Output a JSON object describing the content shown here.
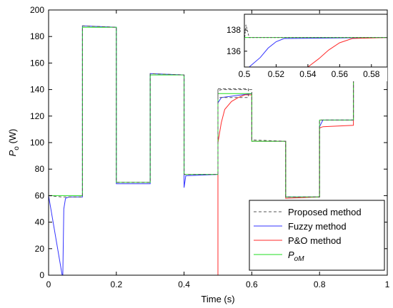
{
  "chart_data": {
    "type": "line",
    "xlabel": "Time (s)",
    "ylabel": "P_o (W)",
    "ylabel_main": "P",
    "ylabel_sub": "o",
    "ylabel_unit": " (W)",
    "xlim": [
      0,
      1
    ],
    "ylim": [
      0,
      200
    ],
    "x_ticks": [
      "0",
      "0.2",
      "0.4",
      "0.6",
      "0.8",
      "1"
    ],
    "y_ticks": [
      "0",
      "20",
      "40",
      "60",
      "80",
      "100",
      "120",
      "140",
      "160",
      "180",
      "200"
    ],
    "grid": false,
    "legend_position": "bottom-right",
    "series": [
      {
        "name": "Proposed method",
        "color": "#555555",
        "style": "dashed",
        "points": [
          [
            0,
            60
          ],
          [
            0.04,
            59
          ],
          [
            0.1,
            59
          ],
          [
            0.1,
            188
          ],
          [
            0.2,
            187
          ],
          [
            0.2,
            70
          ],
          [
            0.3,
            70
          ],
          [
            0.3,
            152
          ],
          [
            0.4,
            151
          ],
          [
            0.4,
            76
          ],
          [
            0.5,
            76
          ],
          [
            0.5,
            139
          ],
          [
            0.51,
            140
          ],
          [
            0.6,
            140
          ],
          [
            0.6,
            102
          ],
          [
            0.7,
            101
          ],
          [
            0.7,
            59
          ],
          [
            0.8,
            59
          ],
          [
            0.8,
            117
          ],
          [
            0.9,
            117
          ],
          [
            0.9,
            187
          ],
          [
            1.0,
            186
          ]
        ]
      },
      {
        "name": "Fuzzy method",
        "color": "#3333ff",
        "style": "solid",
        "points": [
          [
            0,
            60
          ],
          [
            0.04,
            0
          ],
          [
            0.042,
            0
          ],
          [
            0.045,
            50
          ],
          [
            0.05,
            58
          ],
          [
            0.06,
            59
          ],
          [
            0.1,
            59
          ],
          [
            0.1,
            188
          ],
          [
            0.2,
            187
          ],
          [
            0.2,
            69
          ],
          [
            0.3,
            69
          ],
          [
            0.3,
            152
          ],
          [
            0.4,
            151
          ],
          [
            0.4,
            66
          ],
          [
            0.405,
            75
          ],
          [
            0.5,
            76
          ],
          [
            0.5,
            130
          ],
          [
            0.51,
            134
          ],
          [
            0.6,
            137
          ],
          [
            0.6,
            101
          ],
          [
            0.7,
            101
          ],
          [
            0.7,
            59
          ],
          [
            0.8,
            59
          ],
          [
            0.8,
            112
          ],
          [
            0.81,
            117
          ],
          [
            0.9,
            117
          ],
          [
            0.9,
            185
          ],
          [
            1.0,
            186
          ]
        ]
      },
      {
        "name": "P&O method",
        "color": "#ff2a2a",
        "style": "solid",
        "points": [
          [
            0,
            0
          ],
          [
            0.49,
            0
          ],
          [
            0.5,
            0
          ],
          [
            0.5,
            100
          ],
          [
            0.51,
            115
          ],
          [
            0.52,
            125
          ],
          [
            0.54,
            131
          ],
          [
            0.56,
            134
          ],
          [
            0.58,
            136
          ],
          [
            0.6,
            136
          ],
          [
            0.6,
            101
          ],
          [
            0.7,
            101
          ],
          [
            0.7,
            58
          ],
          [
            0.8,
            59
          ],
          [
            0.8,
            111
          ],
          [
            0.81,
            112
          ],
          [
            0.9,
            113
          ],
          [
            0.9,
            186
          ],
          [
            1.0,
            186
          ]
        ]
      },
      {
        "name": "P_oM",
        "legend_main": "P",
        "legend_sub": "oM",
        "color": "#22dd22",
        "style": "solid",
        "points": [
          [
            0,
            60
          ],
          [
            0.1,
            60
          ],
          [
            0.1,
            187
          ],
          [
            0.2,
            187
          ],
          [
            0.2,
            70
          ],
          [
            0.3,
            70
          ],
          [
            0.3,
            151
          ],
          [
            0.4,
            151
          ],
          [
            0.4,
            76
          ],
          [
            0.5,
            76
          ],
          [
            0.5,
            137
          ],
          [
            0.6,
            137
          ],
          [
            0.6,
            101
          ],
          [
            0.7,
            101
          ],
          [
            0.7,
            59
          ],
          [
            0.8,
            59
          ],
          [
            0.8,
            117
          ],
          [
            0.9,
            117
          ],
          [
            0.9,
            186
          ],
          [
            1.0,
            186
          ]
        ]
      }
    ],
    "inset": {
      "xlim": [
        0.5,
        0.59
      ],
      "ylim": [
        134.5,
        139.5
      ],
      "x_ticks": [
        "0.5",
        "0.52",
        "0.54",
        "0.56",
        "0.58"
      ],
      "y_ticks": [
        "136",
        "138"
      ],
      "series": [
        {
          "name": "Proposed method",
          "points": [
            [
              0.5,
              137
            ],
            [
              0.501,
              138.5
            ],
            [
              0.503,
              137.3
            ],
            [
              0.59,
              137.3
            ]
          ]
        },
        {
          "name": "Fuzzy method",
          "points": [
            [
              0.5,
              134.5
            ],
            [
              0.503,
              134.5
            ],
            [
              0.51,
              135.4
            ],
            [
              0.515,
              136.3
            ],
            [
              0.52,
              136.9
            ],
            [
              0.525,
              137.2
            ],
            [
              0.59,
              137.3
            ]
          ]
        },
        {
          "name": "P&O method",
          "points": [
            [
              0.54,
              134.5
            ],
            [
              0.547,
              135.3
            ],
            [
              0.553,
              136.1
            ],
            [
              0.56,
              136.8
            ],
            [
              0.568,
              137.2
            ],
            [
              0.59,
              137.3
            ]
          ]
        },
        {
          "name": "P_oM",
          "points": [
            [
              0.5,
              137.3
            ],
            [
              0.59,
              137.3
            ]
          ]
        }
      ]
    }
  }
}
